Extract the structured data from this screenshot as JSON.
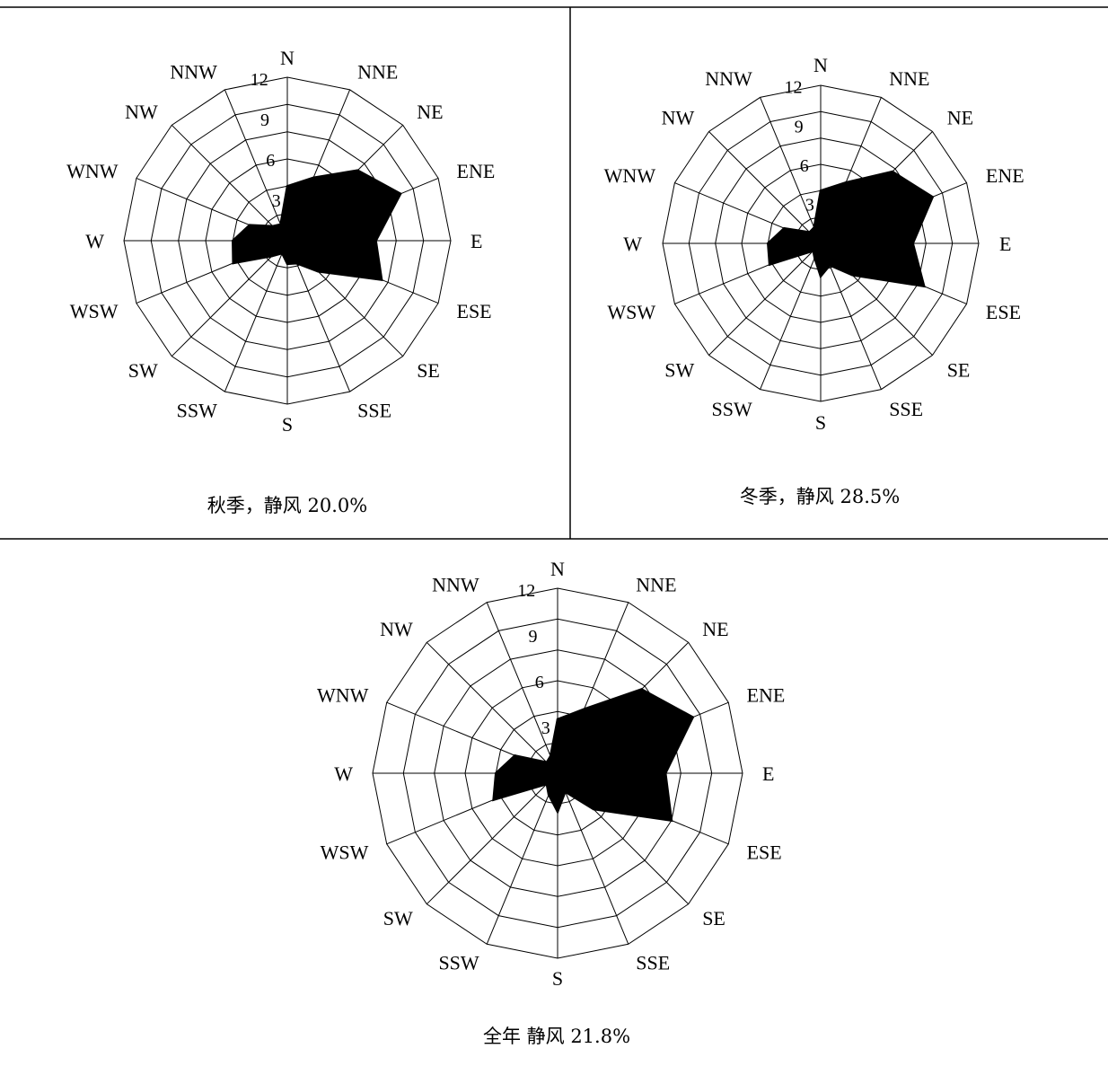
{
  "chart_data": [
    {
      "type": "wind-rose",
      "caption": "秋季，静风 20.0%",
      "directions": [
        "N",
        "NNE",
        "NE",
        "ENE",
        "E",
        "ESE",
        "SE",
        "SSE",
        "S",
        "SSW",
        "SW",
        "WSW",
        "W",
        "WNW",
        "NW",
        "NNW"
      ],
      "ticks": [
        "0",
        "3",
        "6",
        "9",
        "12"
      ],
      "rmax": 12,
      "values": [
        4.0,
        5.0,
        7.3,
        9.0,
        6.5,
        7.5,
        3.2,
        1.8,
        1.7,
        1.0,
        1.6,
        4.3,
        4.0,
        3.0,
        1.5,
        1.3
      ],
      "legend": "none",
      "grid": true
    },
    {
      "type": "wind-rose",
      "caption": "冬季，静风 28.5%",
      "directions": [
        "N",
        "NNE",
        "NE",
        "ENE",
        "E",
        "ESE",
        "SE",
        "SSE",
        "S",
        "SSW",
        "SW",
        "WSW",
        "W",
        "WNW",
        "NW",
        "NNW"
      ],
      "ticks": [
        "0",
        "3",
        "6",
        "9",
        "12"
      ],
      "rmax": 12,
      "values": [
        4.0,
        5.0,
        7.7,
        9.2,
        7.0,
        8.5,
        3.4,
        1.8,
        2.5,
        1.2,
        0.8,
        4.2,
        4.0,
        3.0,
        1.2,
        1.3
      ],
      "legend": "none",
      "grid": true
    },
    {
      "type": "wind-rose",
      "caption": "全年 静风 21.8%",
      "directions": [
        "N",
        "NNE",
        "NE",
        "ENE",
        "E",
        "ESE",
        "SE",
        "SSE",
        "S",
        "SSW",
        "SW",
        "WSW",
        "W",
        "WNW",
        "NW",
        "NNW"
      ],
      "ticks": [
        "0",
        "3",
        "6",
        "9",
        "12"
      ],
      "rmax": 12,
      "values": [
        3.5,
        4.5,
        7.7,
        9.5,
        7.0,
        8.0,
        3.3,
        1.3,
        2.5,
        1.5,
        1.0,
        4.5,
        4.0,
        3.0,
        1.0,
        1.2
      ],
      "legend": "none",
      "grid": true
    }
  ]
}
